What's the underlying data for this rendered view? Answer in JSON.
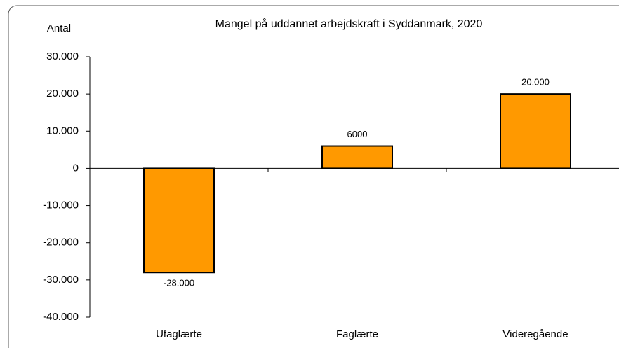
{
  "chart_data": {
    "type": "bar",
    "title": "Mangel på uddannet arbejdskraft i Syddanmark, 2020",
    "y_label": "Antal",
    "categories": [
      "Ufaglærte",
      "Faglærte",
      "Videregående"
    ],
    "values": [
      -28000,
      6000,
      20000
    ],
    "value_labels": [
      "-28.000",
      "6000",
      "20.000"
    ],
    "color": "#ff9900",
    "ylim": [
      -40000,
      30000
    ],
    "yticks": [
      {
        "value": -40000,
        "label": "-40.000"
      },
      {
        "value": -30000,
        "label": "-30.000"
      },
      {
        "value": -20000,
        "label": "-20.000"
      },
      {
        "value": -10000,
        "label": "-10.000"
      },
      0,
      {
        "value": 10000,
        "label": "10.000"
      },
      {
        "value": 20000,
        "label": "20.000"
      },
      {
        "value": 30000,
        "label": "30.000"
      }
    ],
    "grid": false
  }
}
